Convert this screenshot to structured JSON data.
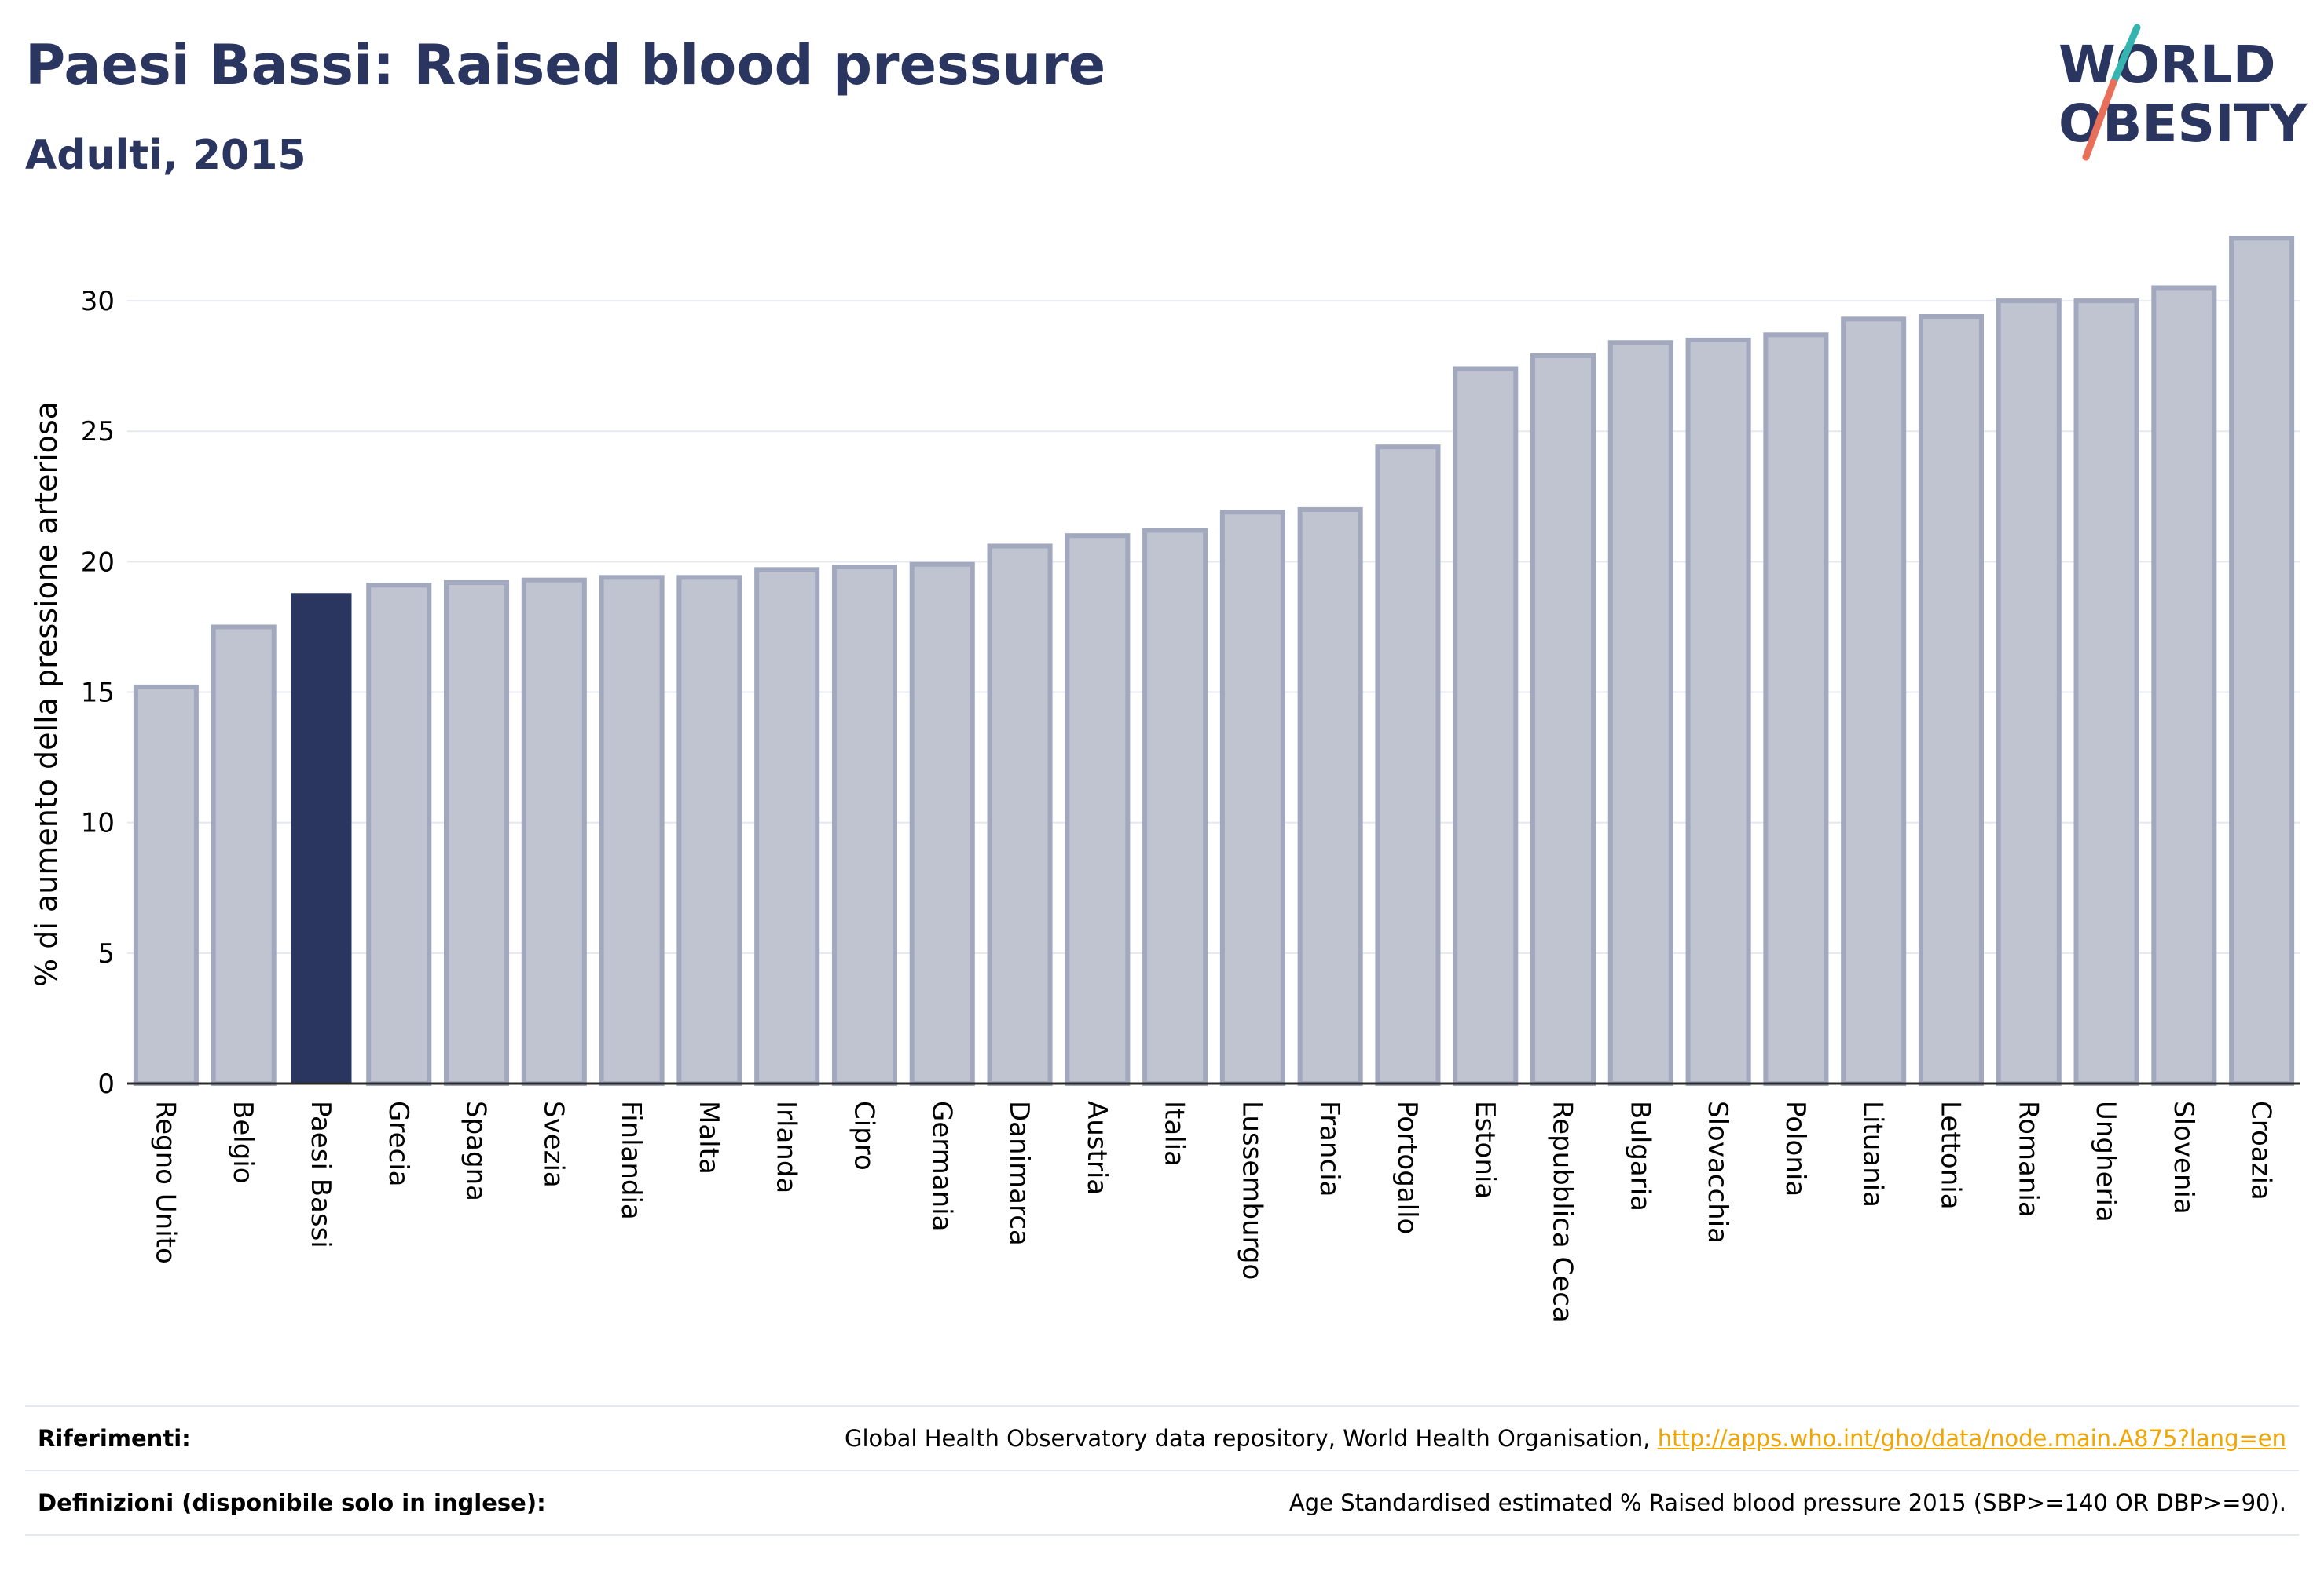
{
  "header": {
    "title": "Paesi Bassi: Raised blood pressure",
    "subtitle": "Adulti, 2015"
  },
  "logo": {
    "line1": "WORLD",
    "line2": "OBESITY",
    "colors": {
      "text": "#2a3560",
      "slash_top": "#36b5b0",
      "slash_bottom": "#e8705a"
    }
  },
  "colors": {
    "bar": "#c0c3d0",
    "bar_stroke": "#a2a8bd",
    "highlight": "#2a3560",
    "grid": "#e6e8ef",
    "axis": "#2a2a2a"
  },
  "chart_data": {
    "type": "bar",
    "title": "",
    "xlabel": "",
    "ylabel": "% di aumento della pressione arteriosa",
    "ylim": [
      0,
      32.5
    ],
    "yticks": [
      0,
      5,
      10,
      15,
      20,
      25,
      30
    ],
    "grid": true,
    "highlight": "Paesi Bassi",
    "categories": [
      "Regno Unito",
      "Belgio",
      "Paesi Bassi",
      "Grecia",
      "Spagna",
      "Svezia",
      "Finlandia",
      "Malta",
      "Irlanda",
      "Cipro",
      "Germania",
      "Danimarca",
      "Austria",
      "Italia",
      "Lussemburgo",
      "Francia",
      "Portogallo",
      "Estonia",
      "Repubblica Ceca",
      "Bulgaria",
      "Slovacchia",
      "Polonia",
      "Lituania",
      "Lettonia",
      "Romania",
      "Ungheria",
      "Slovenia",
      "Croazia"
    ],
    "values": [
      15.2,
      17.5,
      18.8,
      19.1,
      19.2,
      19.3,
      19.4,
      19.4,
      19.7,
      19.8,
      19.9,
      20.6,
      21.0,
      21.2,
      21.9,
      22.0,
      24.4,
      27.4,
      27.9,
      28.4,
      28.5,
      28.7,
      29.3,
      29.4,
      30.0,
      30.0,
      30.5,
      32.4
    ]
  },
  "footer": {
    "references_label": "Riferimenti:",
    "references_text": "Global Health Observatory data repository, World Health Organisation, ",
    "references_link": "http://apps.who.int/gho/data/node.main.A875?lang=en",
    "definitions_label": "Definizioni (disponibile solo in inglese):",
    "definitions_text": "Age Standardised estimated % Raised blood pressure 2015 (SBP>=140 OR DBP>=90)."
  }
}
